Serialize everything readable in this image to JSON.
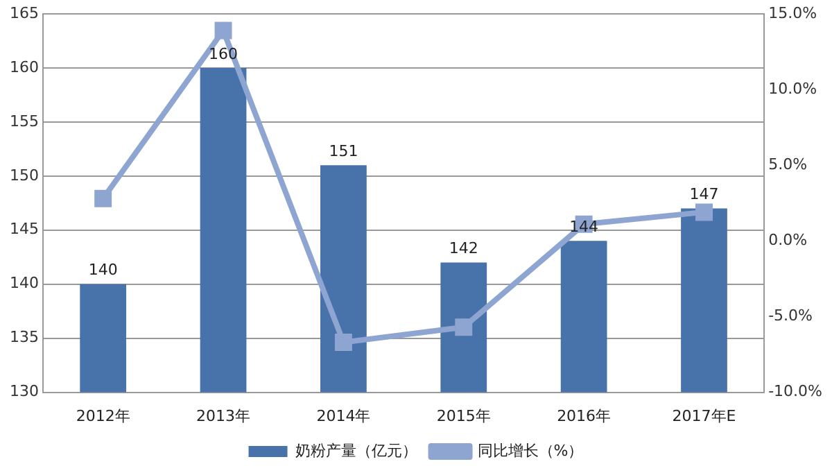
{
  "chart_data": {
    "type": "bar",
    "categories": [
      "2012年",
      "2013年",
      "2014年",
      "2015年",
      "2016年",
      "2017年E"
    ],
    "series": [
      {
        "name": "奶粉产量（亿元）",
        "color": "#4872aa",
        "values": [
          140,
          160,
          151,
          142,
          144,
          147
        ],
        "value_labels": [
          "140",
          "160",
          "151",
          "142",
          "144",
          "147"
        ]
      },
      {
        "name": "同比增长（%）",
        "type": "line",
        "axis": "y2",
        "color": "#8ea5d1",
        "marker": "square",
        "values": [
          2.8,
          13.9,
          -6.7,
          -5.7,
          1.1,
          1.9
        ]
      }
    ],
    "ylim": [
      130,
      165
    ],
    "yticks": [
      130,
      135,
      140,
      145,
      150,
      155,
      160,
      165
    ],
    "y2lim": [
      -10,
      15
    ],
    "y2ticks": [
      {
        "value": -10,
        "label": "-10.0%"
      },
      {
        "value": -5,
        "label": "-5.0%"
      },
      {
        "value": 0,
        "label": "0.0%"
      },
      {
        "value": 5,
        "label": "5.0%"
      },
      {
        "value": 10,
        "label": "10.0%"
      },
      {
        "value": 15,
        "label": "15.0%"
      }
    ],
    "grid": "y",
    "legend": "bottom"
  }
}
